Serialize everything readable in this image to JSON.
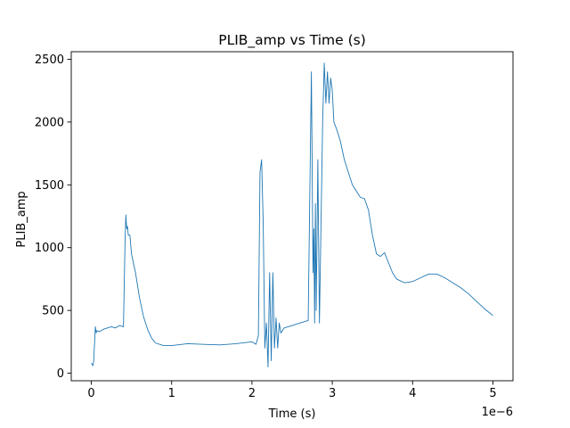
{
  "chart_data": {
    "type": "line",
    "title": "PLIB_amp vs Time (s)",
    "xlabel": "Time (s)",
    "ylabel": "PLIB_amp",
    "x_offset_label": "1e−6",
    "xlim": [
      -0.25,
      5.25
    ],
    "ylim": [
      -60,
      2560
    ],
    "x_ticks": [
      0,
      1,
      2,
      3,
      4,
      5
    ],
    "x_tick_labels": [
      "0",
      "1",
      "2",
      "3",
      "4",
      "5"
    ],
    "y_ticks": [
      0,
      500,
      1000,
      1500,
      2000,
      2500
    ],
    "y_tick_labels": [
      "0",
      "500",
      "1000",
      "1500",
      "2000",
      "2500"
    ],
    "grid": false,
    "series": [
      {
        "color": "#1f77b4",
        "x": [
          0,
          0.02,
          0.03,
          0.05,
          0.06,
          0.07,
          0.1,
          0.15,
          0.2,
          0.25,
          0.3,
          0.35,
          0.4,
          0.42,
          0.43,
          0.44,
          0.45,
          0.46,
          0.48,
          0.5,
          0.55,
          0.6,
          0.65,
          0.7,
          0.75,
          0.8,
          0.9,
          1.0,
          1.2,
          1.4,
          1.6,
          1.8,
          2.0,
          2.05,
          2.08,
          2.1,
          2.12,
          2.14,
          2.16,
          2.18,
          2.2,
          2.22,
          2.24,
          2.26,
          2.28,
          2.3,
          2.32,
          2.34,
          2.36,
          2.4,
          2.5,
          2.6,
          2.7,
          2.74,
          2.76,
          2.77,
          2.78,
          2.79,
          2.8,
          2.82,
          2.84,
          2.86,
          2.88,
          2.9,
          2.92,
          2.94,
          2.96,
          2.98,
          3.0,
          3.02,
          3.05,
          3.1,
          3.15,
          3.2,
          3.25,
          3.3,
          3.35,
          3.4,
          3.45,
          3.5,
          3.55,
          3.6,
          3.65,
          3.7,
          3.75,
          3.8,
          3.9,
          4.0,
          4.1,
          4.2,
          4.3,
          4.4,
          4.5,
          4.6,
          4.7,
          4.8,
          4.9,
          5.0
        ],
        "y": [
          80,
          60,
          100,
          370,
          320,
          340,
          330,
          350,
          360,
          370,
          360,
          380,
          370,
          1050,
          1260,
          1150,
          1170,
          1100,
          1100,
          950,
          800,
          600,
          450,
          350,
          280,
          240,
          220,
          220,
          235,
          230,
          225,
          235,
          250,
          230,
          300,
          1600,
          1700,
          1200,
          200,
          400,
          50,
          800,
          100,
          800,
          200,
          440,
          200,
          400,
          320,
          360,
          380,
          400,
          420,
          2400,
          800,
          1150,
          400,
          1350,
          500,
          1700,
          400,
          1200,
          2000,
          2470,
          2150,
          2400,
          2150,
          2350,
          2250,
          2000,
          1950,
          1850,
          1700,
          1600,
          1500,
          1450,
          1400,
          1390,
          1300,
          1100,
          950,
          930,
          960,
          880,
          800,
          750,
          720,
          730,
          760,
          790,
          790,
          760,
          720,
          680,
          630,
          570,
          510,
          460
        ]
      }
    ]
  }
}
